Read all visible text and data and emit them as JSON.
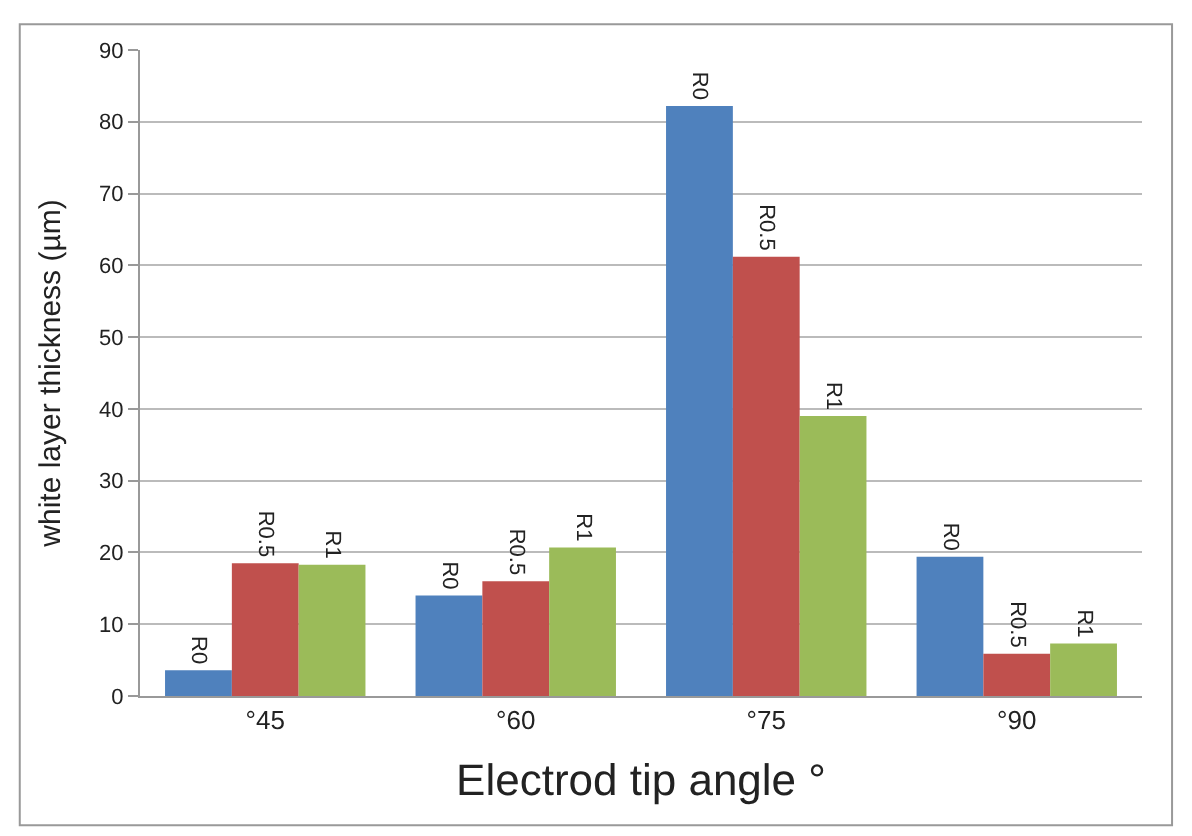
{
  "chart_data": {
    "type": "bar",
    "xlabel": "Electrod tip angle °",
    "ylabel": "white layer thickness (µm)",
    "categories": [
      "°45",
      "°60",
      "°75",
      "°90"
    ],
    "series": [
      {
        "name": "R0",
        "color": "#4f81bd",
        "values": [
          3.6,
          14,
          82.2,
          19.4
        ]
      },
      {
        "name": "R0.5",
        "color": "#c0504d",
        "values": [
          18.5,
          16,
          61.2,
          5.9
        ]
      },
      {
        "name": "R1",
        "color": "#9bbb59",
        "values": [
          18.3,
          20.7,
          39,
          7.3
        ]
      }
    ],
    "ylim": [
      0,
      90
    ],
    "yticks": [
      0,
      10,
      20,
      30,
      40,
      50,
      60,
      70,
      80,
      90
    ],
    "grid": "y",
    "legend": false
  }
}
